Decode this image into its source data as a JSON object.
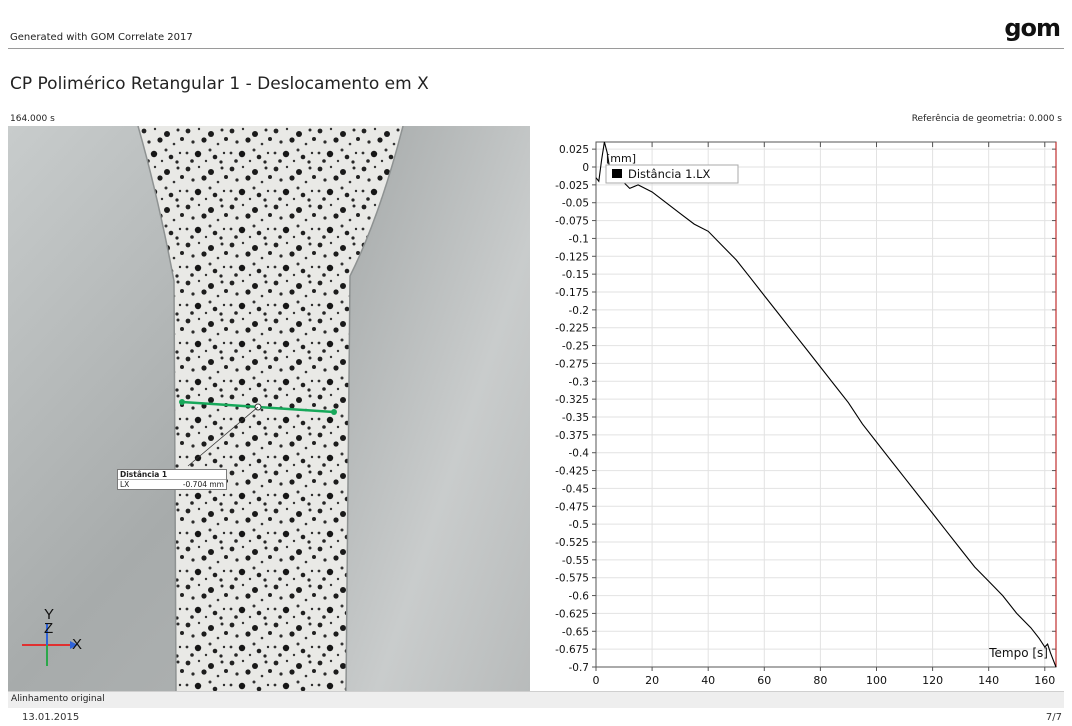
{
  "header": {
    "generated_text": "Generated with GOM Correlate 2017",
    "logo_text": "gom"
  },
  "report": {
    "title": "CP Polimérico Retangular 1 - Deslocamento em X",
    "time_label": "164.000 s",
    "reference_label": "Referência de geometria: 0.000 s"
  },
  "image_view": {
    "measurement": {
      "name": "Distância 1",
      "component": "LX",
      "value": "-0.704 mm",
      "line_color": "#17a85a"
    },
    "axes": {
      "y": "Y",
      "z": "Z",
      "x": "X"
    },
    "colors": {
      "x_axis": "#e03030",
      "y_axis": "#2ba84a",
      "z_axis": "#2f63d8"
    }
  },
  "footer": {
    "alignment": "Alinhamento original",
    "date": "13.01.2015",
    "page": "7/7"
  },
  "chart_data": {
    "type": "line",
    "unit_label": "[mm]",
    "xlabel": "Tempo [s]",
    "ylabel": "",
    "xlim": [
      0,
      164
    ],
    "ylim": [
      -0.7,
      0.035
    ],
    "x_ticks": [
      0,
      20,
      40,
      60,
      80,
      100,
      120,
      140,
      160
    ],
    "y_ticks": [
      0.025,
      0,
      -0.025,
      -0.05,
      -0.075,
      -0.1,
      -0.125,
      -0.15,
      -0.175,
      -0.2,
      -0.225,
      -0.25,
      -0.275,
      -0.3,
      -0.325,
      -0.35,
      -0.375,
      -0.4,
      -0.425,
      -0.45,
      -0.475,
      -0.5,
      -0.525,
      -0.55,
      -0.575,
      -0.6,
      -0.625,
      -0.65,
      -0.675,
      -0.7
    ],
    "grid": true,
    "legend_position": "top-left",
    "marker_line_x": 164,
    "marker_line_color": "#c03030",
    "series": [
      {
        "name": "Distância 1.LX",
        "color": "#000000",
        "x": [
          0,
          1,
          2,
          3,
          4,
          5,
          6,
          8,
          10,
          12,
          15,
          20,
          25,
          30,
          35,
          40,
          45,
          50,
          55,
          60,
          65,
          70,
          75,
          80,
          85,
          90,
          95,
          100,
          105,
          110,
          115,
          120,
          125,
          130,
          135,
          140,
          145,
          150,
          155,
          158,
          160,
          161,
          162,
          163,
          164
        ],
        "y": [
          -0.015,
          -0.02,
          0.01,
          0.035,
          0.02,
          -0.005,
          -0.02,
          -0.01,
          -0.022,
          -0.03,
          -0.025,
          -0.035,
          -0.05,
          -0.065,
          -0.08,
          -0.09,
          -0.11,
          -0.13,
          -0.155,
          -0.18,
          -0.205,
          -0.23,
          -0.255,
          -0.28,
          -0.305,
          -0.33,
          -0.36,
          -0.385,
          -0.41,
          -0.435,
          -0.46,
          -0.485,
          -0.51,
          -0.535,
          -0.56,
          -0.58,
          -0.6,
          -0.625,
          -0.645,
          -0.66,
          -0.672,
          -0.668,
          -0.68,
          -0.69,
          -0.7
        ]
      }
    ]
  }
}
